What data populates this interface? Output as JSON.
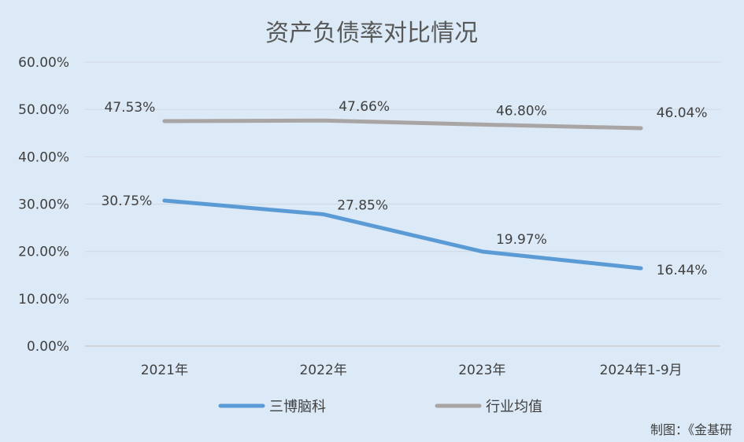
{
  "chart_data": {
    "type": "line",
    "title": "资产负债率对比情况",
    "categories": [
      "2021年",
      "2022年",
      "2023年",
      "2024年1-9月"
    ],
    "series": [
      {
        "name": "三博脑科",
        "values": [
          30.75,
          27.85,
          19.97,
          16.44
        ],
        "labels": [
          "30.75%",
          "27.85%",
          "19.97%",
          "16.44%"
        ],
        "color": "#5b9bd5"
      },
      {
        "name": "行业均值",
        "values": [
          47.53,
          47.66,
          46.8,
          46.04
        ],
        "labels": [
          "47.53%",
          "47.66%",
          "46.80%",
          "46.04%"
        ],
        "color": "#a9a5a5"
      }
    ],
    "ylim": [
      0,
      60
    ],
    "yticks": [
      "0.00%",
      "10.00%",
      "20.00%",
      "30.00%",
      "40.00%",
      "50.00%",
      "60.00%"
    ],
    "grid": true,
    "legend": "bottom"
  },
  "source_note": "制图：《金基研"
}
